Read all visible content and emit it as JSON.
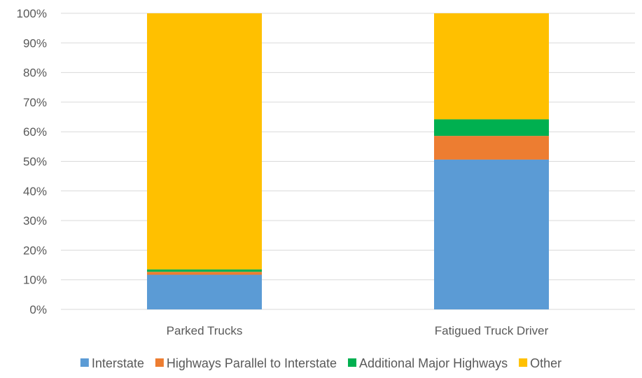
{
  "chart_data": {
    "type": "bar",
    "stacked": true,
    "title": "",
    "xlabel": "",
    "ylabel": "",
    "ylim": [
      0,
      100
    ],
    "y_ticks": [
      "0%",
      "10%",
      "20%",
      "30%",
      "40%",
      "50%",
      "60%",
      "70%",
      "80%",
      "90%",
      "100%"
    ],
    "grid": true,
    "legend_position": "bottom",
    "categories": [
      "Parked Trucks",
      "Fatigued Truck Driver"
    ],
    "series": [
      {
        "name": "Interstate",
        "color": "#5B9BD5",
        "values": [
          11.7,
          50.6
        ]
      },
      {
        "name": "Highways Parallel to Interstate",
        "color": "#ED7D31",
        "values": [
          1.0,
          8.0
        ]
      },
      {
        "name": "Additional Major Highways",
        "color": "#00B050",
        "values": [
          0.8,
          5.6
        ]
      },
      {
        "name": "Other",
        "color": "#FFC000",
        "values": [
          86.5,
          35.8
        ]
      }
    ]
  }
}
